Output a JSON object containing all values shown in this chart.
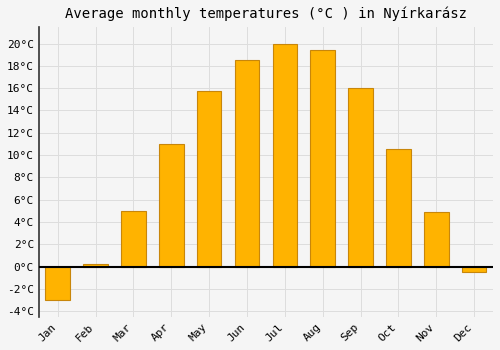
{
  "title": "Average monthly temperatures (°C ) in Nyírkarász",
  "months": [
    "Jan",
    "Feb",
    "Mar",
    "Apr",
    "May",
    "Jun",
    "Jul",
    "Aug",
    "Sep",
    "Oct",
    "Nov",
    "Dec"
  ],
  "values": [
    -3.0,
    0.2,
    5.0,
    11.0,
    15.7,
    18.5,
    20.0,
    19.4,
    16.0,
    10.5,
    4.9,
    -0.5
  ],
  "bar_color": "#FFB300",
  "bar_edge_color": "#C8860A",
  "ylim": [
    -4.5,
    21.5
  ],
  "yticks": [
    -4,
    -2,
    0,
    2,
    4,
    6,
    8,
    10,
    12,
    14,
    16,
    18,
    20
  ],
  "background_color": "#f5f5f5",
  "grid_color": "#dddddd",
  "title_fontsize": 10,
  "tick_fontsize": 8,
  "zero_line_color": "#000000",
  "left_border_color": "#333333"
}
